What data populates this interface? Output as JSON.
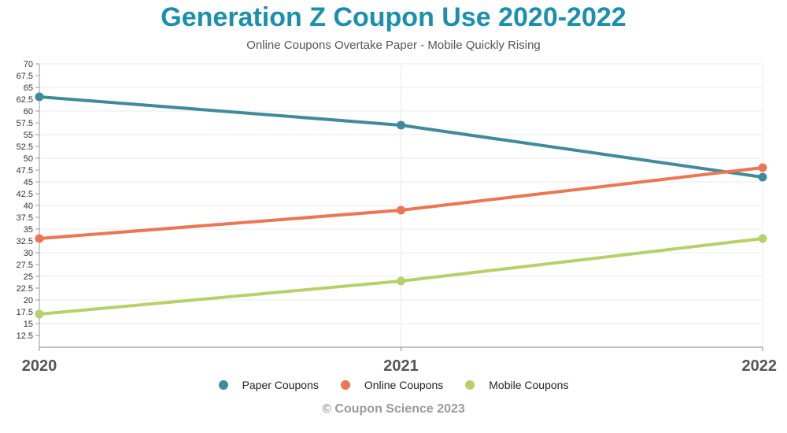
{
  "chart_data": {
    "type": "line",
    "title": "Generation Z Coupon Use 2020-2022",
    "subtitle": "Online Coupons Overtake Paper - Mobile Quickly Rising",
    "categories": [
      "2020",
      "2021",
      "2022"
    ],
    "ylim": [
      10,
      70
    ],
    "yticks": [
      "12.5",
      "15",
      "17.5",
      "20",
      "22.5",
      "25",
      "27.5",
      "30",
      "32.5",
      "35",
      "37.5",
      "40",
      "42.5",
      "45",
      "47.5",
      "50",
      "52.5",
      "55",
      "57.5",
      "60",
      "62.5",
      "65",
      "67.5",
      "70"
    ],
    "grid": true,
    "legend_position": "bottom",
    "series": [
      {
        "name": "Paper Coupons",
        "values": [
          63,
          57,
          46
        ],
        "color": "#3f8b9b"
      },
      {
        "name": "Online Coupons",
        "values": [
          33,
          39,
          48
        ],
        "color": "#ec7552"
      },
      {
        "name": "Mobile Coupons",
        "values": [
          17,
          24,
          33
        ],
        "color": "#b6d168"
      }
    ],
    "credit": "© Coupon Science 2023"
  }
}
